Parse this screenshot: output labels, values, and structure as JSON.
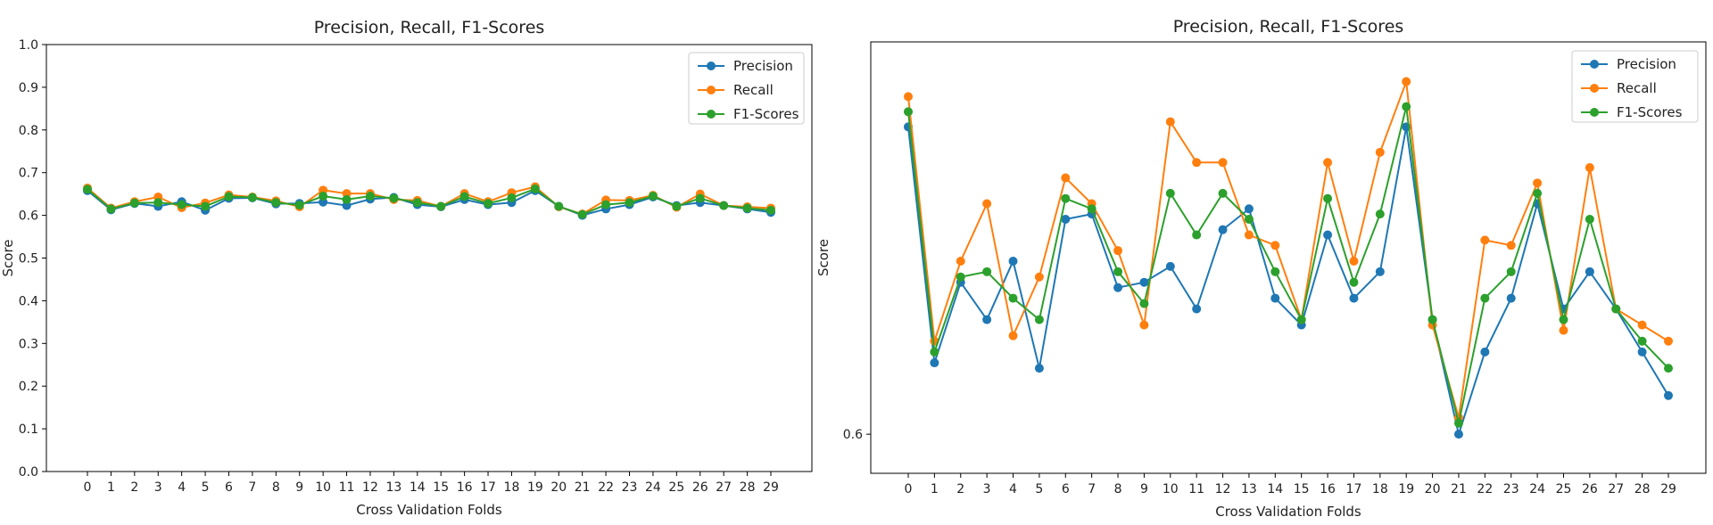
{
  "chart_data": [
    {
      "type": "line",
      "title": "Precision, Recall, F1-Scores",
      "xlabel": "Cross Validation Folds",
      "ylabel": "Score",
      "x": [
        0,
        1,
        2,
        3,
        4,
        5,
        6,
        7,
        8,
        9,
        10,
        11,
        12,
        13,
        14,
        15,
        16,
        17,
        18,
        19,
        20,
        21,
        22,
        23,
        24,
        25,
        26,
        27,
        28,
        29
      ],
      "ylim": [
        0.0,
        1.0
      ],
      "yticks": [
        "0.0",
        "0.1",
        "0.2",
        "0.3",
        "0.4",
        "0.5",
        "0.6",
        "0.7",
        "0.8",
        "0.9",
        "1.0"
      ],
      "legend_position": "top-right",
      "grid": false,
      "series": [
        {
          "name": "Precision",
          "color": "#1f77b4",
          "values": [
            0.658,
            0.613,
            0.628,
            0.621,
            0.632,
            0.612,
            0.64,
            0.641,
            0.627,
            0.628,
            0.631,
            0.623,
            0.638,
            0.642,
            0.625,
            0.62,
            0.637,
            0.625,
            0.63,
            0.658,
            0.621,
            0.6,
            0.615,
            0.625,
            0.643,
            0.623,
            0.63,
            0.623,
            0.615,
            0.607
          ]
        },
        {
          "name": "Recall",
          "color": "#ff7f0e",
          "values": [
            0.664,
            0.617,
            0.632,
            0.643,
            0.618,
            0.629,
            0.648,
            0.643,
            0.634,
            0.62,
            0.659,
            0.651,
            0.651,
            0.637,
            0.635,
            0.621,
            0.651,
            0.632,
            0.653,
            0.667,
            0.62,
            0.603,
            0.636,
            0.635,
            0.647,
            0.619,
            0.65,
            0.623,
            0.62,
            0.617
          ]
        },
        {
          "name": "F1-Scores",
          "color": "#2ca02c",
          "values": [
            0.661,
            0.615,
            0.629,
            0.63,
            0.625,
            0.621,
            0.644,
            0.642,
            0.63,
            0.624,
            0.645,
            0.637,
            0.645,
            0.64,
            0.63,
            0.621,
            0.644,
            0.628,
            0.641,
            0.662,
            0.621,
            0.602,
            0.625,
            0.63,
            0.645,
            0.621,
            0.64,
            0.623,
            0.617,
            0.612
          ]
        }
      ]
    },
    {
      "type": "line",
      "title": "Precision, Recall, F1-Scores",
      "xlabel": "Cross Validation Folds",
      "ylabel": "Score",
      "x": [
        0,
        1,
        2,
        3,
        4,
        5,
        6,
        7,
        8,
        9,
        10,
        11,
        12,
        13,
        14,
        15,
        16,
        17,
        18,
        19,
        20,
        21,
        22,
        23,
        24,
        25,
        26,
        27,
        28,
        29
      ],
      "ylim": [
        0.593,
        0.675
      ],
      "yscale": "log",
      "yticks": [
        "0.6"
      ],
      "legend_position": "top-right",
      "grid": false,
      "series": [
        {
          "name": "Precision",
          "color": "#1f77b4",
          "values": [
            0.658,
            0.613,
            0.628,
            0.621,
            0.632,
            0.612,
            0.64,
            0.641,
            0.627,
            0.628,
            0.631,
            0.623,
            0.638,
            0.642,
            0.625,
            0.62,
            0.637,
            0.625,
            0.63,
            0.658,
            0.621,
            0.6,
            0.615,
            0.625,
            0.643,
            0.623,
            0.63,
            0.623,
            0.615,
            0.607
          ]
        },
        {
          "name": "Recall",
          "color": "#ff7f0e",
          "values": [
            0.664,
            0.617,
            0.632,
            0.643,
            0.618,
            0.629,
            0.648,
            0.643,
            0.634,
            0.62,
            0.659,
            0.651,
            0.651,
            0.637,
            0.635,
            0.621,
            0.651,
            0.632,
            0.653,
            0.667,
            0.62,
            0.603,
            0.636,
            0.635,
            0.647,
            0.619,
            0.65,
            0.623,
            0.62,
            0.617
          ]
        },
        {
          "name": "F1-Scores",
          "color": "#2ca02c",
          "values": [
            0.661,
            0.615,
            0.629,
            0.63,
            0.625,
            0.621,
            0.644,
            0.642,
            0.63,
            0.624,
            0.645,
            0.637,
            0.645,
            0.64,
            0.63,
            0.621,
            0.644,
            0.628,
            0.641,
            0.662,
            0.621,
            0.602,
            0.625,
            0.63,
            0.645,
            0.621,
            0.64,
            0.623,
            0.617,
            0.612
          ]
        }
      ]
    }
  ]
}
